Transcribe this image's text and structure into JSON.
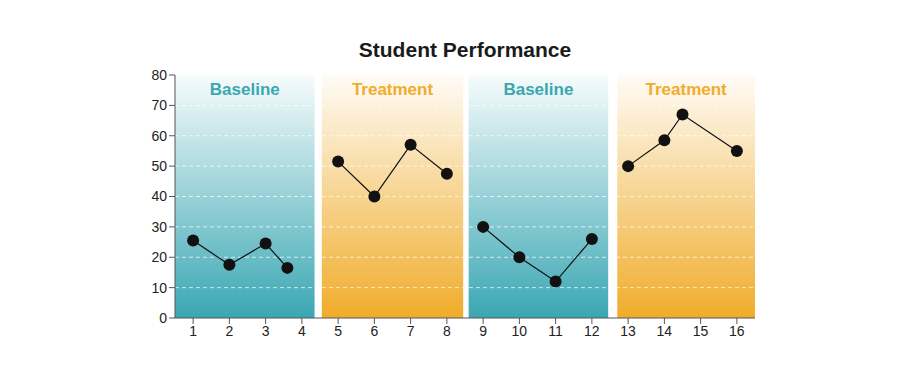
{
  "chart_data": {
    "type": "line",
    "title": "Student Performance",
    "x": [
      1,
      2,
      3,
      3.6,
      5,
      6,
      7,
      8,
      9,
      10,
      11,
      12,
      13,
      14,
      14.5,
      16
    ],
    "values": [
      25.5,
      17.5,
      24.5,
      16.5,
      51.5,
      40,
      57,
      47.5,
      30,
      20,
      12,
      26,
      50,
      58.5,
      67,
      55
    ],
    "color": "#111111",
    "marker": "circle",
    "xlim": [
      0.5,
      16.5
    ],
    "xticks": [
      1,
      2,
      3,
      4,
      5,
      6,
      7,
      8,
      9,
      10,
      11,
      12,
      13,
      14,
      15,
      16
    ],
    "ylim": [
      0,
      80
    ],
    "yticks": [
      0,
      10,
      20,
      30,
      40,
      50,
      60,
      70,
      80
    ],
    "grid": true,
    "phases": [
      {
        "name": "Baseline",
        "from": 0.5,
        "to": 4.35,
        "color": "#3aa7b3"
      },
      {
        "name": "Treatment",
        "from": 4.55,
        "to": 8.45,
        "color": "#f0ac2a"
      },
      {
        "name": "Baseline",
        "from": 8.6,
        "to": 12.45,
        "color": "#3aa7b3"
      },
      {
        "name": "Treatment",
        "from": 12.7,
        "to": 16.5,
        "color": "#f0ac2a"
      }
    ]
  }
}
